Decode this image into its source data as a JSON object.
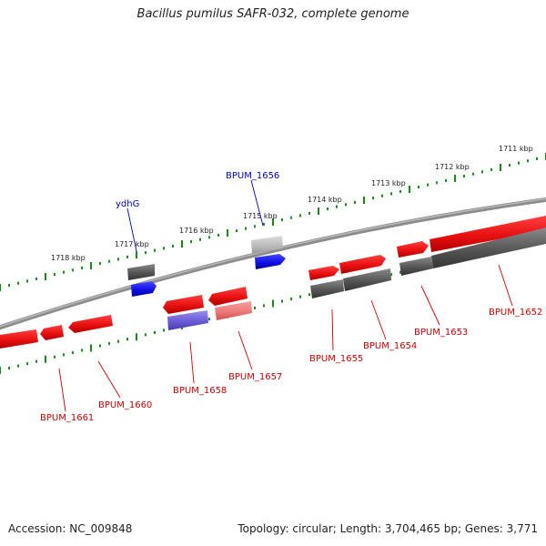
{
  "title": "Bacillus pumilus SAFR-032, complete genome",
  "footer": {
    "accession": "Accession: NC_009848",
    "topology": "Topology: circular; Length: 3,704,465 bp; Genes: 3,771"
  },
  "colors": {
    "forward": "#e81010",
    "forward_light": "#f08080",
    "other_gene": "#555555",
    "other_gene_light": "#bbbbbb",
    "labeled_blue": "#1010e6",
    "labeled_purple": "#6a5ad5",
    "ticks": "#1a8a1a",
    "backbone": "#8c8c8c",
    "label_red": "#cc0000",
    "label_blue": "#0000bb"
  },
  "kbp_labels": [
    "1711 kbp",
    "1712 kbp",
    "1713 kbp",
    "1714 kbp",
    "1715 kbp",
    "1716 kbp",
    "1717 kbp",
    "1718 kbp"
  ],
  "genes": [
    {
      "id": "ydhG",
      "label": "ydhG",
      "label_color": "blue"
    },
    {
      "id": "BPUM_1656",
      "label": "BPUM_1656",
      "label_color": "blue"
    },
    {
      "id": "BPUM_1652",
      "label": "BPUM_1652",
      "label_color": "red"
    },
    {
      "id": "BPUM_1653",
      "label": "BPUM_1653",
      "label_color": "red"
    },
    {
      "id": "BPUM_1654",
      "label": "BPUM_1654",
      "label_color": "red"
    },
    {
      "id": "BPUM_1655",
      "label": "BPUM_1655",
      "label_color": "red"
    },
    {
      "id": "BPUM_1657",
      "label": "BPUM_1657",
      "label_color": "red"
    },
    {
      "id": "BPUM_1658",
      "label": "BPUM_1658",
      "label_color": "red"
    },
    {
      "id": "BPUM_1660",
      "label": "BPUM_1660",
      "label_color": "red"
    },
    {
      "id": "BPUM_1661",
      "label": "BPUM_1661",
      "label_color": "red"
    }
  ]
}
